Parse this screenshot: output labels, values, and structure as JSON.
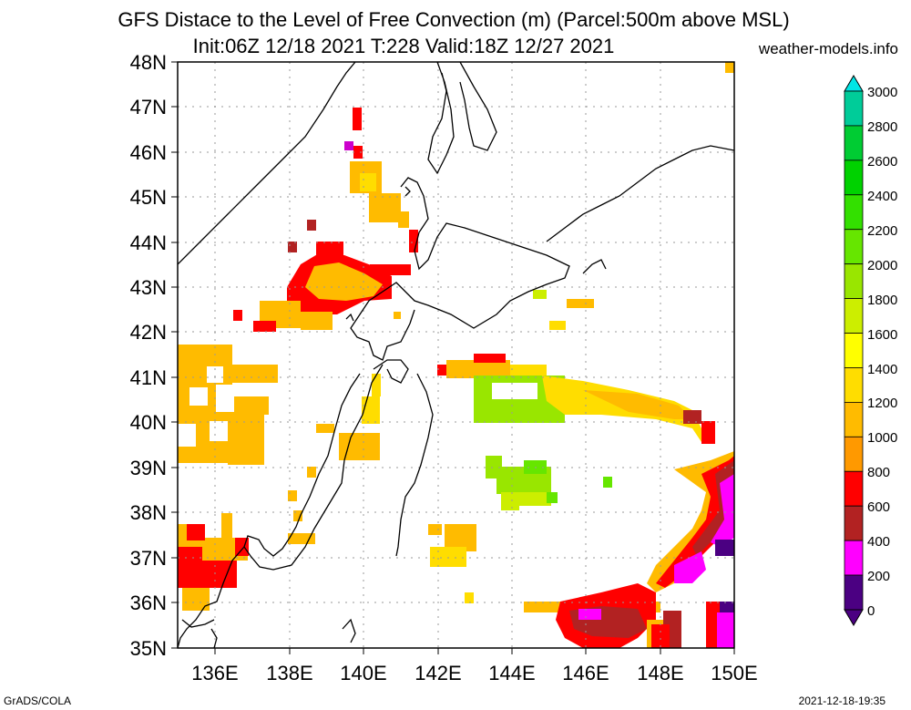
{
  "header": {
    "title_line1": "GFS Distace to the Level of Free Convection (m) (Parcel:500m above MSL)",
    "title_line2": "Init:06Z 12/18 2021 T:228 Valid:18Z 12/27 2021",
    "site": "weather-models.info"
  },
  "footer": {
    "left": "GrADS/COLA",
    "right": "2021-12-18-19:35"
  },
  "map": {
    "lat_labels": [
      "48N",
      "47N",
      "46N",
      "45N",
      "44N",
      "43N",
      "42N",
      "41N",
      "40N",
      "39N",
      "38N",
      "37N",
      "36N",
      "35N"
    ],
    "lon_labels": [
      "136E",
      "138E",
      "140E",
      "142E",
      "144E",
      "146E",
      "148E",
      "150E"
    ],
    "lat_range": [
      35,
      48
    ],
    "lon_range": [
      135,
      150
    ],
    "grid": "dotted"
  },
  "colorbar": {
    "labels": [
      "3000",
      "2800",
      "2600",
      "2400",
      "2200",
      "2000",
      "1800",
      "1600",
      "1400",
      "1200",
      "1000",
      "800",
      "600",
      "400",
      "200",
      "0"
    ],
    "colors": [
      "#00e6e6",
      "#00cc99",
      "#00cc33",
      "#00d200",
      "#33e000",
      "#66e600",
      "#99e600",
      "#ccee00",
      "#ffff00",
      "#ffdd00",
      "#ffbb00",
      "#ff9900",
      "#ff0000",
      "#b22222",
      "#ff00ff",
      "#4b0082"
    ]
  }
}
